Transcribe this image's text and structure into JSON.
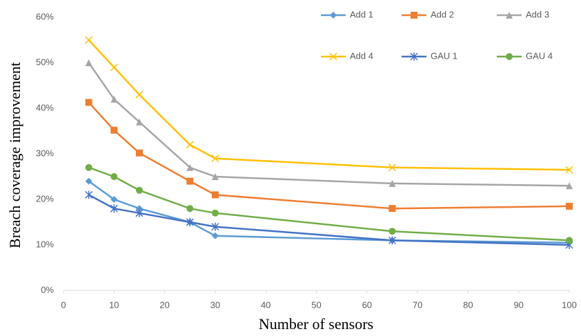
{
  "chart_data": {
    "type": "line",
    "x_label": "Number of sensors",
    "y_label": "Breach coverage improvement",
    "x": [
      5,
      10,
      15,
      25,
      30,
      65,
      100
    ],
    "xlim": [
      0,
      100
    ],
    "xticks": [
      0,
      10,
      20,
      30,
      40,
      50,
      60,
      70,
      80,
      90,
      100
    ],
    "ylim": [
      0,
      60
    ],
    "yticks": [
      {
        "value": 0,
        "label": "0%"
      },
      {
        "value": 10,
        "label": "10%"
      },
      {
        "value": 20,
        "label": "20%"
      },
      {
        "value": 30,
        "label": "30%"
      },
      {
        "value": 40,
        "label": "40%"
      },
      {
        "value": 50,
        "label": "50%"
      },
      {
        "value": 60,
        "label": "60%"
      }
    ],
    "grid": false,
    "legend": "top-right",
    "series": [
      {
        "name": "Add 1",
        "color": "#5b9bd5",
        "marker": "diamond",
        "values": [
          24,
          20,
          18,
          15,
          12,
          11,
          10.5
        ]
      },
      {
        "name": "Add 2",
        "color": "#ed7d31",
        "marker": "square",
        "values": [
          41.3,
          35.2,
          30.2,
          24,
          21,
          18,
          18.5
        ]
      },
      {
        "name": "Add 3",
        "color": "#a5a5a5",
        "marker": "triangle",
        "values": [
          50,
          42,
          37,
          27,
          25,
          23.5,
          23
        ]
      },
      {
        "name": "Add 4",
        "color": "#ffc000",
        "marker": "x",
        "values": [
          55,
          49,
          43,
          32,
          29,
          27,
          26.5
        ]
      },
      {
        "name": "GAU 1",
        "color": "#4472c4",
        "marker": "star",
        "values": [
          21,
          18,
          17,
          15,
          14,
          11,
          10
        ]
      },
      {
        "name": "GAU 4",
        "color": "#70ad47",
        "marker": "circle",
        "values": [
          27,
          25,
          22,
          18,
          17,
          13,
          11
        ]
      }
    ]
  }
}
